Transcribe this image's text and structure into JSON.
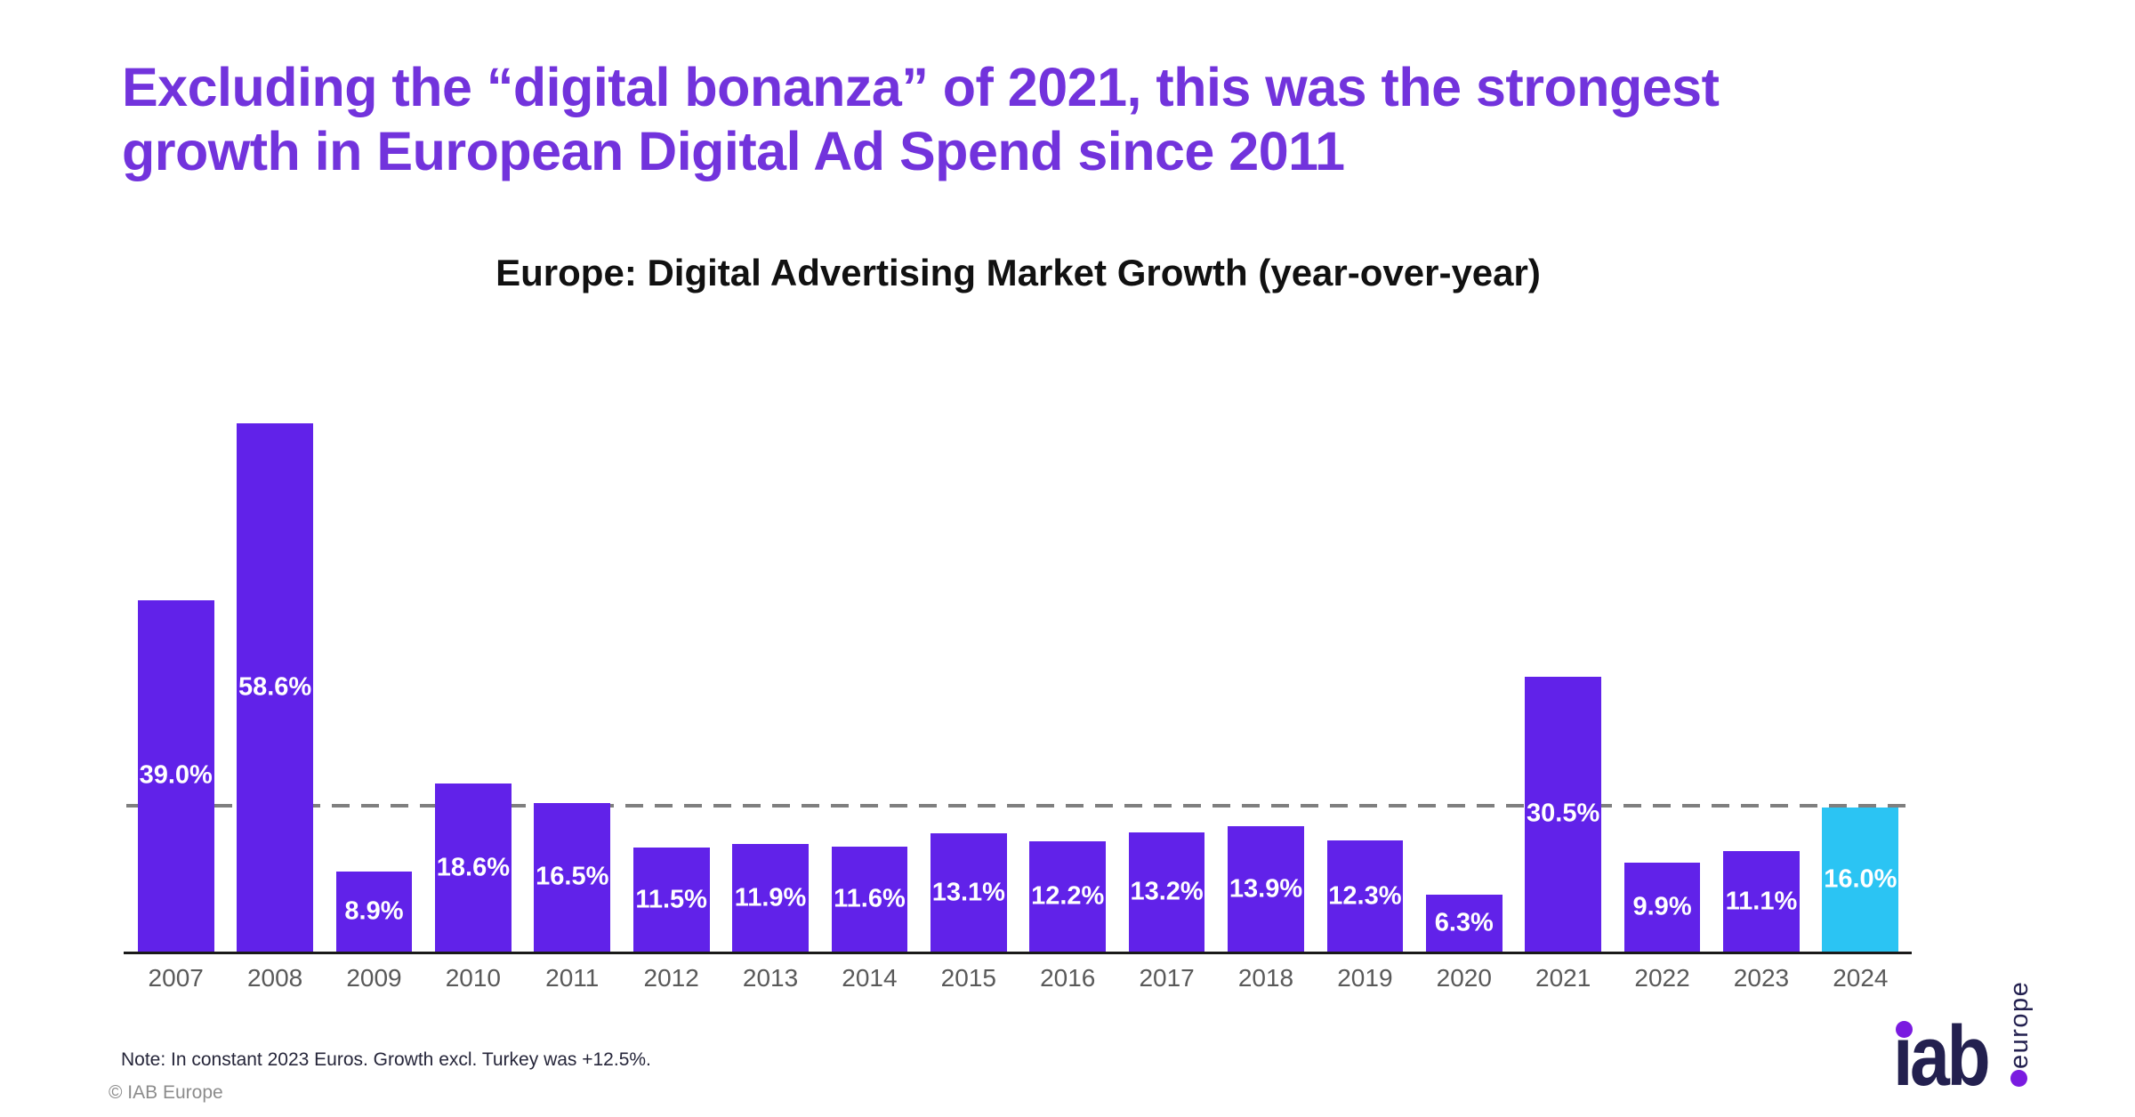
{
  "page": {
    "title_lines": [
      "Excluding the “digital bonanza” of 2021, this was the strongest",
      "growth in European Digital Ad Spend since 2011"
    ],
    "title_color": "#7233dc",
    "note": "Note: In constant 2023 Euros. Growth excl. Turkey was +12.5%.",
    "copyright": "© IAB Europe"
  },
  "logo": {
    "iab_text": "ıab",
    "europe_text": "europe",
    "navy": "#23204f",
    "purple": "#7a1be0"
  },
  "chart_data": {
    "type": "bar",
    "title": "Europe: Digital Advertising Market Growth (year-over-year)",
    "categories": [
      "2007",
      "2008",
      "2009",
      "2010",
      "2011",
      "2012",
      "2013",
      "2014",
      "2015",
      "2016",
      "2017",
      "2018",
      "2019",
      "2020",
      "2021",
      "2022",
      "2023",
      "2024"
    ],
    "values": [
      39.0,
      58.6,
      8.9,
      18.6,
      16.5,
      11.5,
      11.9,
      11.6,
      13.1,
      12.2,
      13.2,
      13.9,
      12.3,
      6.3,
      30.5,
      9.9,
      11.1,
      16.0
    ],
    "data_labels": [
      "39.0%",
      "58.6%",
      "8.9%",
      "18.6%",
      "16.5%",
      "11.5%",
      "11.9%",
      "11.6%",
      "13.1%",
      "12.2%",
      "13.2%",
      "13.9%",
      "12.3%",
      "6.3%",
      "30.5%",
      "9.9%",
      "11.1%",
      "16.0%"
    ],
    "highlight_index": 17,
    "bar_color": "#6122e9",
    "highlight_color": "#2bc4f3",
    "label_color": "#ffffff",
    "axis_label_color": "#595959",
    "reference_line": {
      "value": 16.0,
      "style": "dashed",
      "color": "#7f7f7f"
    },
    "ylabel": "",
    "xlabel": "",
    "grid": false,
    "legend": false,
    "ylim": [
      0,
      62
    ]
  }
}
